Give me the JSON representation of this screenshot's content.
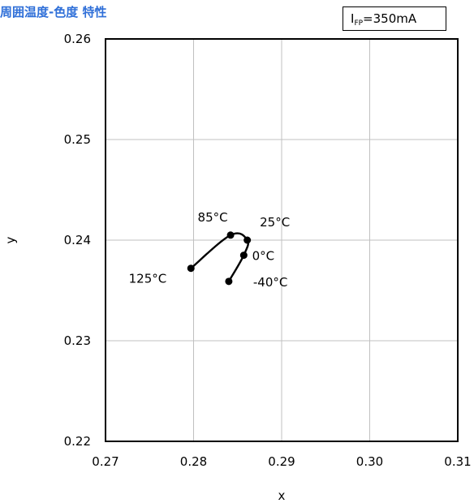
{
  "title": "周囲温度-色度 特性",
  "condition": {
    "label_main": "I",
    "label_sub": "FP",
    "label_value": "=350mA"
  },
  "colors": {
    "title": "#2f6fd8",
    "axis": "#000000",
    "grid": "#c0c0c0",
    "series": "#000000"
  },
  "chart_data": {
    "type": "line",
    "xlabel": "x",
    "ylabel": "y",
    "xlim": [
      0.27,
      0.31
    ],
    "ylim": [
      0.22,
      0.26
    ],
    "xticks": [
      "0.27",
      "0.28",
      "0.29",
      "0.30",
      "0.31"
    ],
    "yticks": [
      "0.22",
      "0.23",
      "0.24",
      "0.25",
      "0.26"
    ],
    "grid": true,
    "markers": "filled-circle",
    "points": [
      {
        "label": "125°C",
        "x": 0.2797,
        "y": 0.2372
      },
      {
        "label": "85°C",
        "x": 0.2842,
        "y": 0.2405
      },
      {
        "label": "25°C",
        "x": 0.2861,
        "y": 0.24
      },
      {
        "label": "0°C",
        "x": 0.2857,
        "y": 0.2385
      },
      {
        "label": "-40°C",
        "x": 0.284,
        "y": 0.2359
      }
    ]
  }
}
